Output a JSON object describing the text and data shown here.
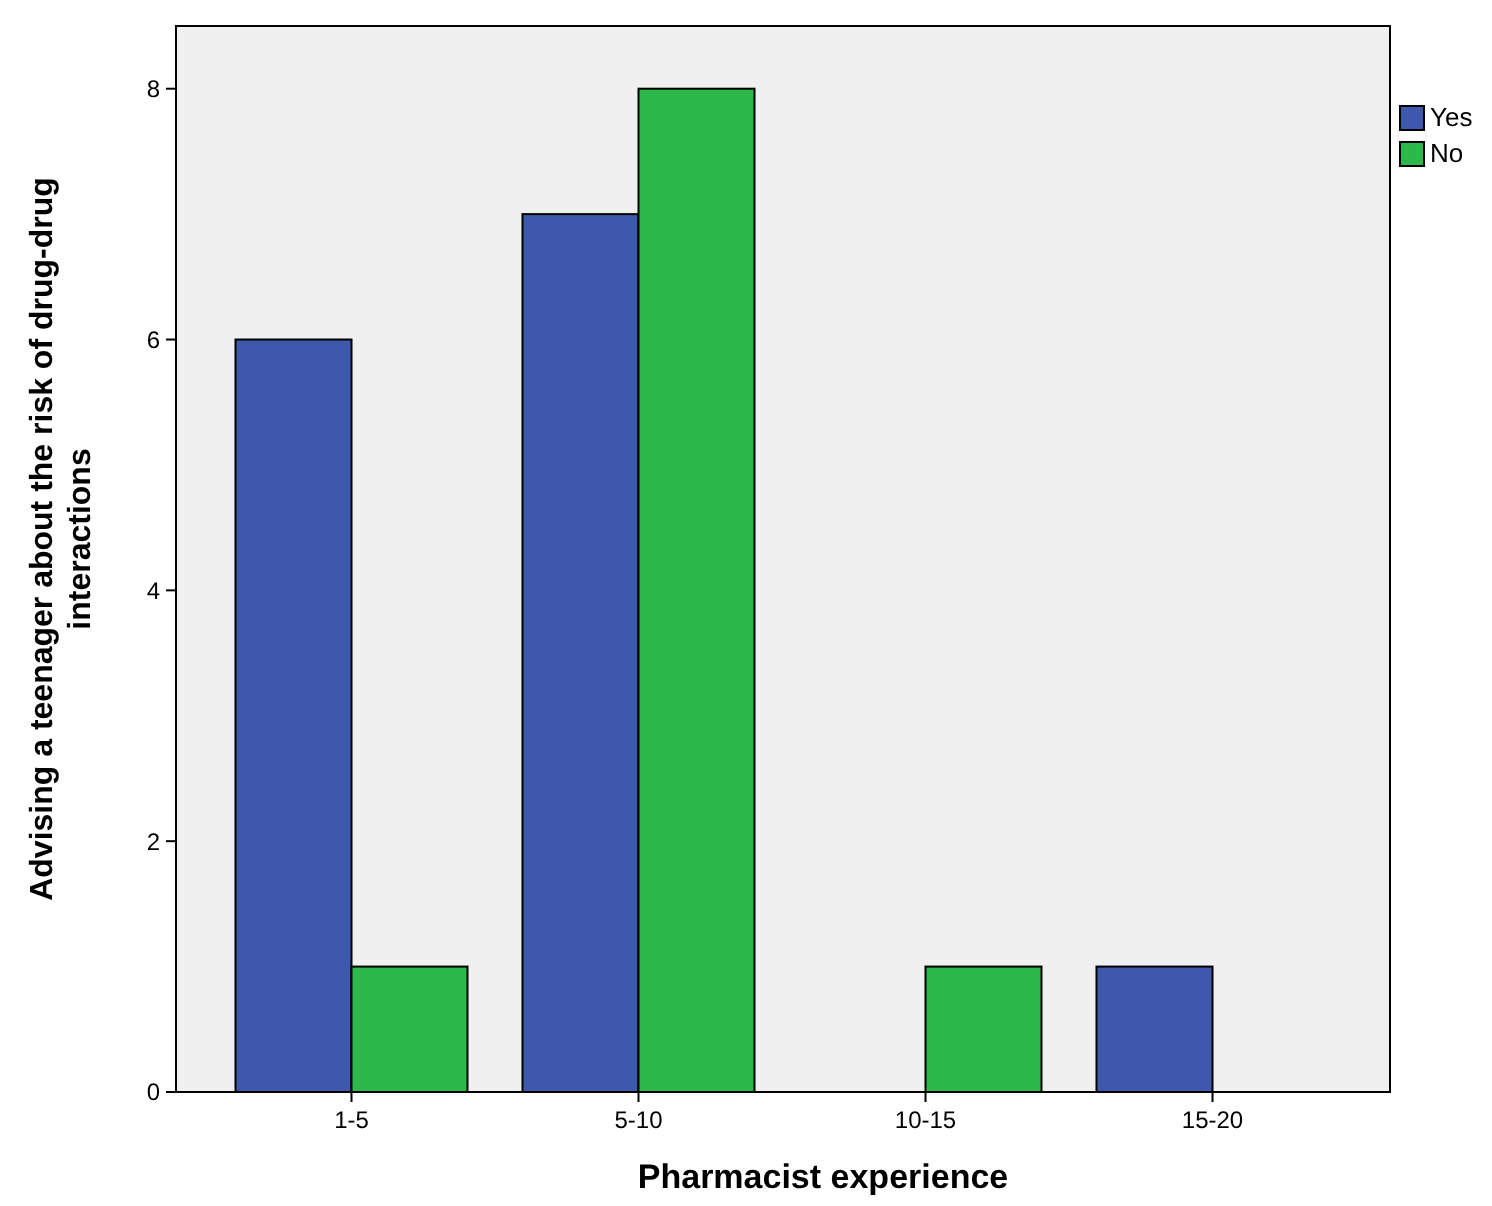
{
  "chart_data": {
    "type": "bar",
    "xlabel": "Pharmacist experience",
    "ylabel": "Advising a teenager about the risk of drug-drug interactions",
    "categories": [
      "1-5",
      "5-10",
      "10-15",
      "15-20"
    ],
    "series": [
      {
        "name": "Yes",
        "color": "#3e58ac",
        "values": [
          6,
          7,
          null,
          1
        ]
      },
      {
        "name": "No",
        "color": "#2db84a",
        "values": [
          1,
          8,
          1,
          null
        ]
      }
    ],
    "ylim": [
      0,
      8.5
    ],
    "yticks": [
      0,
      2,
      4,
      6,
      8
    ],
    "grid": false,
    "legend": "top right"
  }
}
